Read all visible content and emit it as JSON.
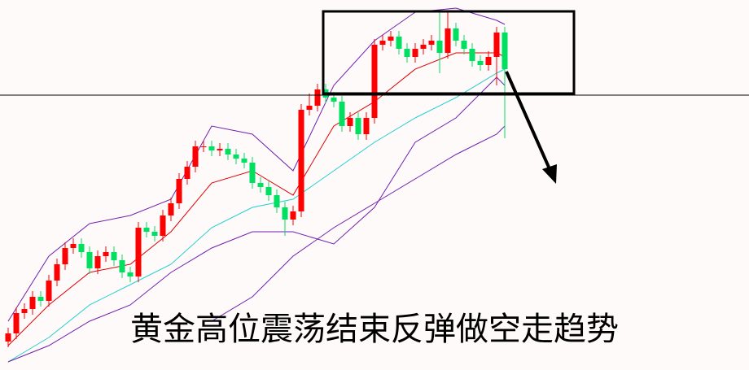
{
  "chart_data": {
    "type": "candlestick",
    "annotation": "黄金高位震荡结束反弹做空走趋势",
    "ylim": [
      0,
      455
    ],
    "up_color": "#ff0000",
    "down_color": "#00e060",
    "open": [
      35,
      45,
      70,
      75,
      90,
      85,
      110,
      130,
      150,
      155,
      145,
      125,
      140,
      145,
      135,
      120,
      115,
      175,
      170,
      165,
      190,
      205,
      235,
      250,
      275,
      275,
      270,
      272,
      265,
      260,
      255,
      230,
      225,
      215,
      200,
      185,
      195,
      320,
      325,
      345,
      335,
      330,
      300,
      310,
      290,
      310,
      400,
      405,
      410,
      395,
      385,
      395,
      400,
      405,
      390,
      420,
      405,
      395,
      380,
      375,
      385,
      415
    ],
    "high": [
      52,
      77,
      82,
      97,
      97,
      117,
      137,
      157,
      162,
      162,
      152,
      147,
      152,
      152,
      142,
      127,
      182,
      182,
      177,
      197,
      212,
      242,
      257,
      282,
      282,
      282,
      279,
      279,
      272,
      267,
      262,
      237,
      232,
      222,
      207,
      202,
      327,
      340,
      352,
      352,
      342,
      337,
      317,
      317,
      317,
      407,
      412,
      417,
      417,
      402,
      402,
      407,
      412,
      440,
      440,
      427,
      412,
      402,
      387,
      392,
      422,
      422
    ],
    "low": [
      28,
      38,
      63,
      68,
      78,
      78,
      103,
      123,
      143,
      138,
      118,
      118,
      133,
      128,
      113,
      108,
      108,
      163,
      158,
      158,
      183,
      198,
      228,
      243,
      268,
      263,
      263,
      258,
      253,
      248,
      223,
      218,
      208,
      193,
      165,
      178,
      188,
      313,
      318,
      328,
      323,
      293,
      293,
      283,
      283,
      303,
      393,
      398,
      388,
      378,
      378,
      388,
      393,
      365,
      383,
      398,
      388,
      373,
      368,
      368,
      350,
      285
    ],
    "close": [
      45,
      70,
      75,
      90,
      85,
      110,
      130,
      150,
      155,
      145,
      125,
      140,
      145,
      135,
      120,
      115,
      175,
      170,
      165,
      190,
      205,
      235,
      250,
      275,
      275,
      270,
      272,
      265,
      260,
      255,
      230,
      225,
      215,
      200,
      185,
      195,
      320,
      325,
      345,
      335,
      330,
      300,
      310,
      290,
      310,
      400,
      405,
      410,
      395,
      385,
      395,
      400,
      405,
      390,
      420,
      405,
      395,
      380,
      375,
      385,
      415,
      370
    ],
    "lines": [
      {
        "color": "#e00000",
        "x": [
          0,
          5,
          10,
          15,
          20,
          25,
          30,
          35,
          40,
          45,
          50,
          55,
          60,
          61
        ],
        "values": [
          30,
          80,
          120,
          130,
          170,
          230,
          245,
          215,
          300,
          330,
          370,
          390,
          390,
          385
        ]
      },
      {
        "color": "#20d0d0",
        "x": [
          0,
          5,
          10,
          15,
          20,
          25,
          30,
          35,
          40,
          45,
          50,
          55,
          60,
          61
        ],
        "values": [
          10,
          40,
          80,
          105,
          130,
          175,
          200,
          210,
          245,
          280,
          310,
          335,
          365,
          370
        ]
      },
      {
        "color": "#7020b0",
        "x": [
          0,
          5,
          10,
          15,
          20,
          25,
          30,
          35,
          40,
          45,
          50,
          55,
          60,
          61
        ],
        "values": [
          60,
          140,
          180,
          190,
          210,
          300,
          290,
          245,
          350,
          405,
          440,
          445,
          430,
          425
        ]
      },
      {
        "color": "#7020b0",
        "x": [
          0,
          5,
          10,
          15,
          20,
          25,
          30,
          35,
          40,
          45,
          50,
          55,
          60,
          61
        ],
        "values": [
          10,
          30,
          60,
          80,
          120,
          150,
          170,
          170,
          155,
          200,
          280,
          310,
          360,
          350
        ]
      },
      {
        "color": "#7020b0",
        "x": [
          25,
          30,
          35,
          40,
          45,
          50,
          55,
          60,
          61
        ],
        "values": [
          60,
          90,
          140,
          175,
          205,
          235,
          265,
          290,
          300
        ]
      }
    ]
  }
}
